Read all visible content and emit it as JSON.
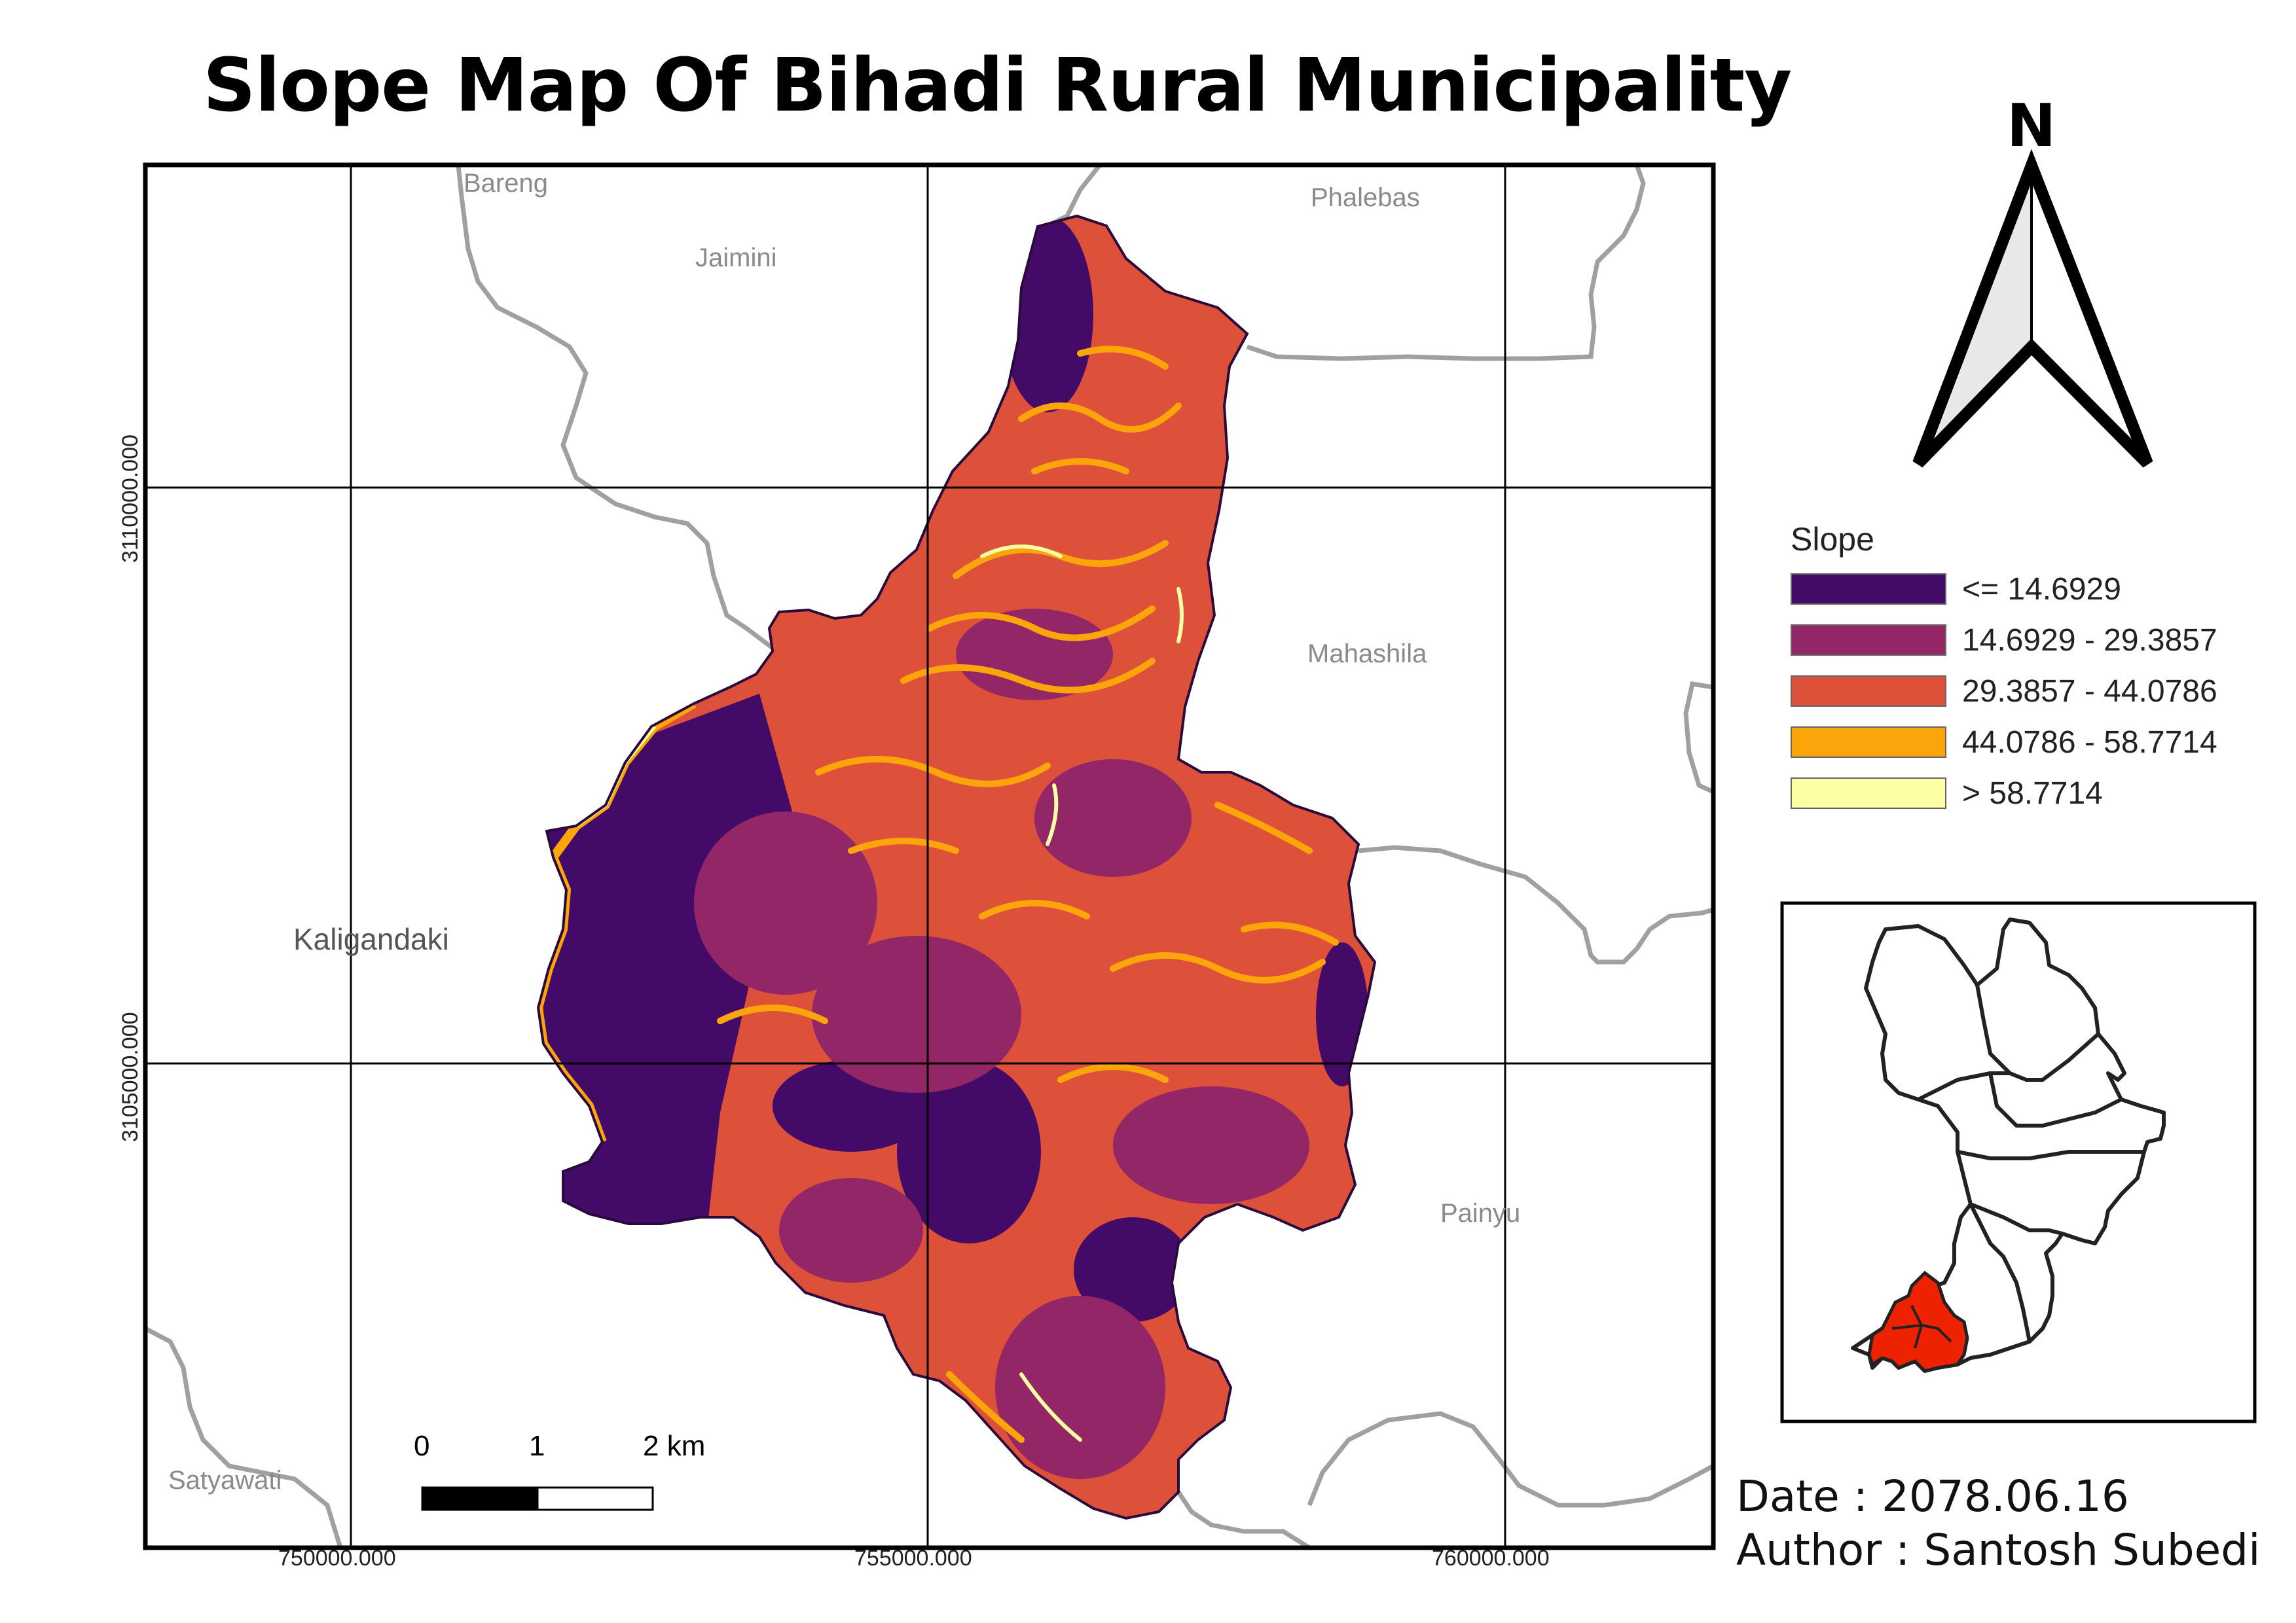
{
  "title": "Slope Map Of Bihadi Rural Municipality",
  "coordinates": {
    "x_labels": [
      "750000.000",
      "755000.000",
      "760000.000"
    ],
    "y_labels": [
      "3110000.000",
      "3105000.000"
    ]
  },
  "places": [
    {
      "name": "Bareng"
    },
    {
      "name": "Jaimini"
    },
    {
      "name": "Phalebas"
    },
    {
      "name": "Mahashila"
    },
    {
      "name": "Kaligandaki"
    },
    {
      "name": "Painyu"
    },
    {
      "name": "Satyawati"
    }
  ],
  "north_arrow": {
    "label": "N"
  },
  "legend": {
    "title": "Slope",
    "items": [
      {
        "label": "<= 14.6929",
        "color": "#440a68"
      },
      {
        "label": "14.6929 - 29.3857",
        "color": "#932667"
      },
      {
        "label": "29.3857 - 44.0786",
        "color": "#dd513a"
      },
      {
        "label": "44.0786 - 58.7714",
        "color": "#fca50a"
      },
      {
        "label": "> 58.7714",
        "color": "#fcffa4"
      }
    ]
  },
  "scale_bar": {
    "labels": [
      "0",
      "1",
      "2 km"
    ]
  },
  "footer": {
    "date": "Date : 2078.06.16",
    "author": "Author : Santosh Subedi"
  },
  "inset_map": {
    "highlight_color": "#ee2200"
  }
}
